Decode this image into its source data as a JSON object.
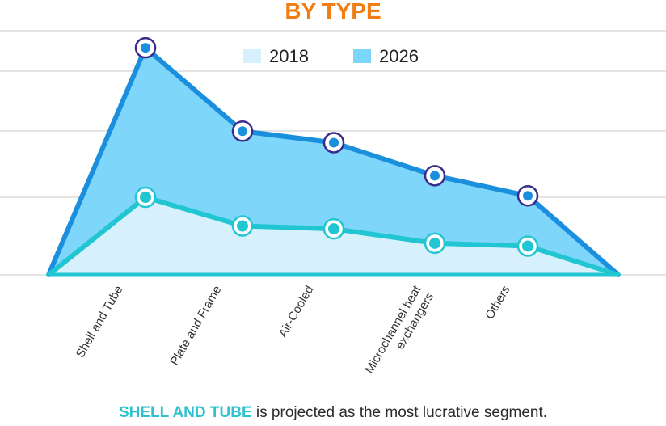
{
  "chart_data": {
    "type": "area",
    "title": "BY TYPE",
    "categories": [
      "Shell and Tube",
      "Plate and Frame",
      "Air-Cooled",
      "Microchannel heat exchangers",
      "Others"
    ],
    "series": [
      {
        "name": "2018",
        "values": [
          5.4,
          3.4,
          3.2,
          2.2,
          2.0
        ]
      },
      {
        "name": "2026",
        "values": [
          15.8,
          10.0,
          9.2,
          6.9,
          5.5
        ]
      }
    ],
    "ylim": [
      0,
      18
    ],
    "grid": true,
    "legend_position": "top-center",
    "colors": {
      "2018_fill": "#d6f1fc",
      "2018_line": "#22c6d2",
      "2026_fill": "#7fd6fb",
      "2026_line": "#1a8fde",
      "marker_2026_ring": "#3a2c8c",
      "title": "#f07e12"
    }
  },
  "footer": {
    "highlight": "SHELL AND TUBE",
    "text": " is projected as the most lucrative segment."
  }
}
